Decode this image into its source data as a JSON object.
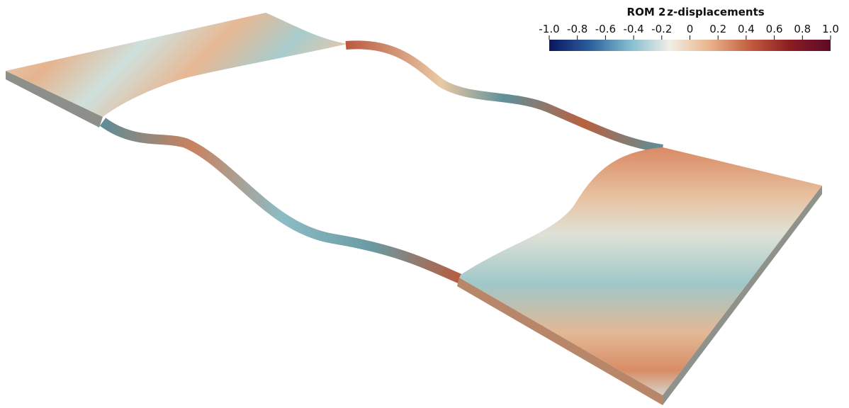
{
  "title": "ROM 2",
  "colorbar": {
    "label": "z-displacements",
    "range": [
      -1,
      1
    ],
    "ticks": [
      {
        "value": -1,
        "label": "-1.0"
      },
      -0.8,
      -0.6,
      -0.4,
      -0.2,
      0,
      0.2,
      0.4,
      0.6,
      0.8,
      {
        "value": 1,
        "label": "1.0"
      }
    ],
    "colormap": [
      "#0b1560",
      "#2b5e9c",
      "#82bccf",
      "#f1efe6",
      "#e9b28b",
      "#c25e3e",
      "#8c1b22",
      "#5b0b2a"
    ]
  }
}
